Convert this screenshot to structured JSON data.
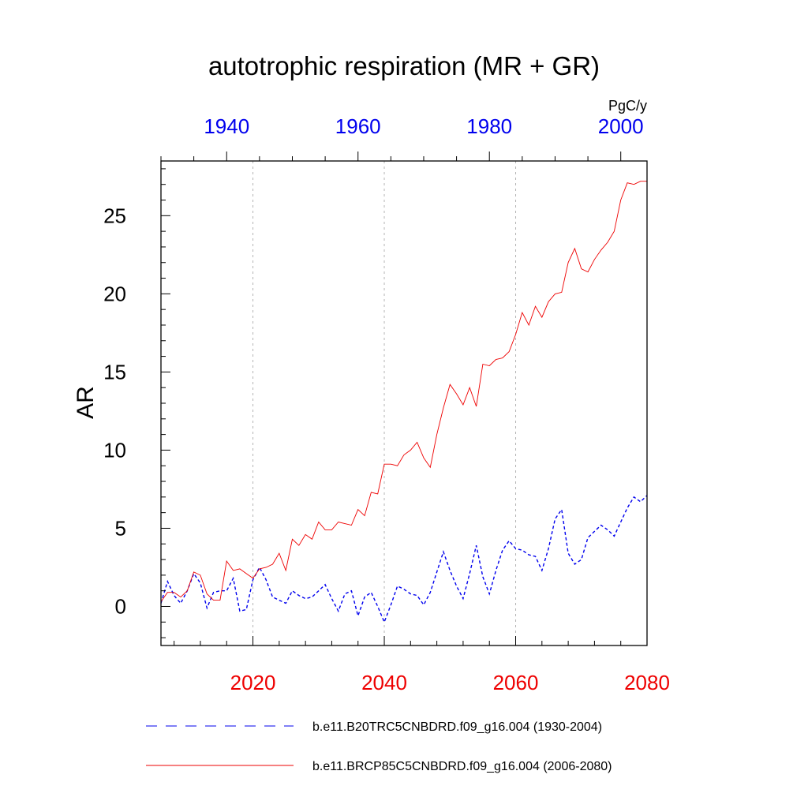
{
  "chart_data": {
    "type": "line",
    "title": "autotrophic respiration (MR + GR)",
    "units": "PgC/y",
    "ylabel": "AR",
    "ylim": [
      -2.5,
      28.5
    ],
    "yticks": [
      0,
      5,
      10,
      15,
      20,
      25
    ],
    "ytick_labels": [
      "0",
      "5",
      "10",
      "15",
      "20",
      "25"
    ],
    "grid": "vertical dashed lines at 2020, 2040, 2060",
    "x_bottom": {
      "range": [
        2006,
        2080
      ],
      "ticks": [
        2020,
        2040,
        2060,
        2080
      ],
      "tick_labels": [
        "2020",
        "2040",
        "2060",
        "2080"
      ],
      "color": "#ee0000"
    },
    "x_top": {
      "range": [
        1930,
        2004
      ],
      "ticks": [
        1940,
        1960,
        1980,
        2000
      ],
      "tick_labels": [
        "1940",
        "1960",
        "1980",
        "2000"
      ],
      "color": "#0000ee"
    },
    "series": [
      {
        "name": "b.e11.B20TRC5CNBDRD.f09_g16.004 (1930-2004)",
        "color": "#0000ee",
        "style": "dashed",
        "axis": "top",
        "x_start": 1930,
        "values": [
          0.2,
          1.6,
          0.7,
          0.2,
          1.0,
          2.1,
          1.5,
          -0.1,
          0.9,
          1.0,
          1.0,
          1.8,
          -0.3,
          -0.2,
          1.7,
          2.5,
          1.7,
          0.6,
          0.4,
          0.2,
          1.0,
          0.7,
          0.5,
          0.6,
          1.0,
          1.4,
          0.5,
          -0.3,
          0.8,
          1.0,
          -0.6,
          0.6,
          0.9,
          0.0,
          -1.0,
          0.1,
          1.3,
          1.1,
          0.8,
          0.7,
          0.1,
          0.9,
          2.2,
          3.5,
          2.3,
          1.3,
          0.5,
          2.1,
          3.9,
          1.9,
          0.8,
          2.3,
          3.6,
          4.2,
          3.7,
          3.6,
          3.3,
          3.2,
          2.3,
          3.7,
          5.6,
          6.2,
          3.4,
          2.7,
          3.0,
          4.4,
          4.8,
          5.2,
          4.9,
          4.5,
          5.4,
          6.3,
          7.0,
          6.7,
          7.1
        ]
      },
      {
        "name": "b.e11.BRCP85C5CNBDRD.f09_g16.004 (2006-2080)",
        "color": "#ee0000",
        "style": "solid",
        "axis": "bottom",
        "x_start": 2006,
        "values": [
          0.3,
          0.9,
          0.9,
          0.6,
          1.0,
          2.2,
          2.0,
          0.8,
          0.4,
          0.4,
          2.9,
          2.3,
          2.4,
          2.1,
          1.8,
          2.4,
          2.5,
          2.7,
          3.4,
          2.3,
          4.3,
          3.9,
          4.6,
          4.3,
          5.4,
          4.9,
          4.9,
          5.4,
          5.3,
          5.2,
          6.2,
          5.8,
          7.3,
          7.2,
          9.1,
          9.1,
          9.0,
          9.7,
          10.0,
          10.5,
          9.5,
          8.9,
          11.0,
          12.7,
          14.2,
          13.6,
          12.9,
          14.0,
          12.8,
          15.5,
          15.4,
          15.8,
          15.9,
          16.3,
          17.4,
          18.8,
          18.0,
          19.2,
          18.5,
          19.5,
          20.0,
          20.1,
          22.0,
          22.9,
          21.6,
          21.4,
          22.2,
          22.8,
          23.3,
          24.0,
          26.0,
          27.1,
          27.0,
          27.2,
          27.2
        ]
      }
    ],
    "legend": {
      "placement": "bottom",
      "entries": [
        "b.e11.B20TRC5CNBDRD.f09_g16.004 (1930-2004)",
        "b.e11.BRCP85C5CNBDRD.f09_g16.004 (2006-2080)"
      ]
    }
  }
}
